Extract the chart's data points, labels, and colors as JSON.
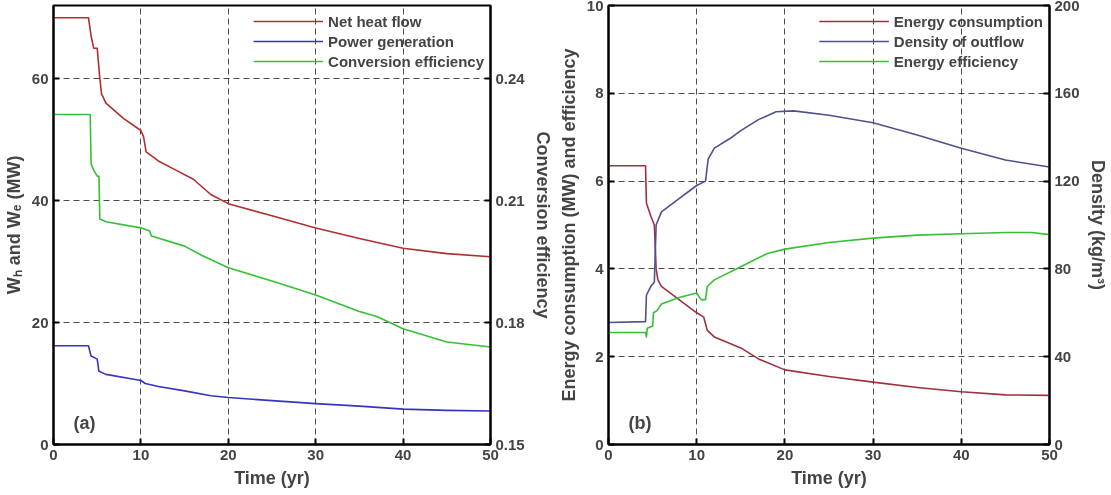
{
  "chart_data": [
    {
      "type": "line",
      "xlabel": "Time (yr)",
      "ylabel": "Wₕ and Wₑ (MW)",
      "y2label": "Conversion efficiency",
      "annotations": [
        "(a)"
      ],
      "xlim": [
        0,
        50
      ],
      "xticks": [
        0,
        10,
        20,
        30,
        40,
        50
      ],
      "ylim": [
        0,
        72
      ],
      "yticks": [
        0,
        20,
        40,
        60
      ],
      "y2lim": [
        0.15,
        0.258
      ],
      "y2ticks": [
        0.15,
        0.18,
        0.21,
        0.24
      ],
      "grid": true,
      "legend": "top right",
      "line_style": "solid",
      "series": [
        {
          "name": "Net heat flow",
          "color": "#b03030",
          "x": [
            0,
            4,
            4.3,
            4.6,
            5.0,
            5.3,
            5.5,
            6,
            8,
            10,
            10.3,
            10.6,
            12,
            14,
            16,
            18,
            20,
            25,
            30,
            35,
            40,
            45,
            50
          ],
          "values": [
            70,
            70,
            67,
            65,
            65,
            60,
            57.5,
            56,
            53.5,
            51.5,
            50.5,
            48,
            46.5,
            45,
            43.5,
            41,
            39.5,
            37.5,
            35.5,
            33.8,
            32.2,
            31.3,
            30.8
          ]
        },
        {
          "name": "Power generation",
          "color": "#3535c0",
          "x": [
            0,
            4,
            4.3,
            5,
            5.2,
            6,
            10,
            10.5,
            12,
            15,
            18,
            20,
            25,
            30,
            35,
            40,
            45,
            50
          ],
          "values": [
            16.2,
            16.2,
            14.5,
            14,
            12,
            11.5,
            10.5,
            10,
            9.5,
            8.8,
            8,
            7.7,
            7.2,
            6.7,
            6.3,
            5.8,
            5.6,
            5.5
          ]
        },
        {
          "name": "Conversion efficiency",
          "color": "#35c035",
          "axis": "y2",
          "x": [
            0,
            4.2,
            4.3,
            4.6,
            5.0,
            5.2,
            5.3,
            6,
            10,
            11,
            11.2,
            15,
            17,
            20,
            25,
            30,
            35,
            37,
            40,
            45,
            50
          ],
          "values": [
            0.2312,
            0.2312,
            0.219,
            0.2175,
            0.216,
            0.216,
            0.2055,
            0.2048,
            0.2033,
            0.2025,
            0.2013,
            0.1988,
            0.1965,
            0.1935,
            0.1902,
            0.1868,
            0.1827,
            0.1815,
            0.1785,
            0.1752,
            0.174
          ]
        }
      ]
    },
    {
      "type": "line",
      "xlabel": "Time (yr)",
      "ylabel": "Energy consumption (MW) and efficiency",
      "y2label": "Density (kg/m³)",
      "annotations": [
        "(b)"
      ],
      "xlim": [
        0,
        50
      ],
      "xticks": [
        0,
        10,
        20,
        30,
        40,
        50
      ],
      "ylim": [
        0,
        10
      ],
      "yticks": [
        0,
        2,
        4,
        6,
        8,
        10
      ],
      "y2lim": [
        0,
        200
      ],
      "y2ticks": [
        0,
        40,
        80,
        120,
        160,
        200
      ],
      "grid": true,
      "legend": "top right",
      "line_style": "solid",
      "series": [
        {
          "name": "Energy consumption",
          "color": "#a03040",
          "x": [
            0,
            4.2,
            4.3,
            4.8,
            5.2,
            5.4,
            5.6,
            6,
            8,
            10,
            10.8,
            11.2,
            12,
            15,
            17,
            20,
            25,
            30,
            35,
            40,
            45,
            50
          ],
          "values": [
            6.35,
            6.35,
            5.5,
            5.2,
            5.0,
            4,
            3.75,
            3.6,
            3.3,
            3.0,
            2.9,
            2.6,
            2.45,
            2.2,
            1.95,
            1.7,
            1.55,
            1.42,
            1.3,
            1.2,
            1.13,
            1.12
          ]
        },
        {
          "name": "Density of outflow",
          "color": "#505090",
          "axis": "y2",
          "x": [
            0,
            4.2,
            4.3,
            4.8,
            5.2,
            5.4,
            6,
            8,
            10,
            11,
            11.3,
            12,
            14,
            15,
            17,
            19,
            21,
            25,
            30,
            35,
            40,
            45,
            50
          ],
          "values": [
            55.6,
            56,
            68,
            72,
            74,
            100,
            106,
            112,
            118,
            120,
            130,
            135,
            140,
            143,
            148,
            151.6,
            152,
            150,
            146.6,
            141,
            135,
            129.6,
            126.4
          ]
        },
        {
          "name": "Energy efficiency",
          "color": "#35c035",
          "x": [
            0,
            4.2,
            4.3,
            4.4,
            5,
            5.1,
            5.5,
            6,
            8,
            10,
            10.5,
            11,
            11.2,
            12,
            15,
            16,
            18,
            20,
            25,
            30,
            35,
            40,
            45,
            48,
            50
          ],
          "values": [
            2.55,
            2.55,
            2.45,
            2.65,
            2.7,
            3.0,
            3.05,
            3.2,
            3.35,
            3.45,
            3.3,
            3.3,
            3.6,
            3.75,
            4.05,
            4.15,
            4.35,
            4.45,
            4.6,
            4.7,
            4.77,
            4.8,
            4.83,
            4.83,
            4.78
          ]
        }
      ]
    }
  ]
}
